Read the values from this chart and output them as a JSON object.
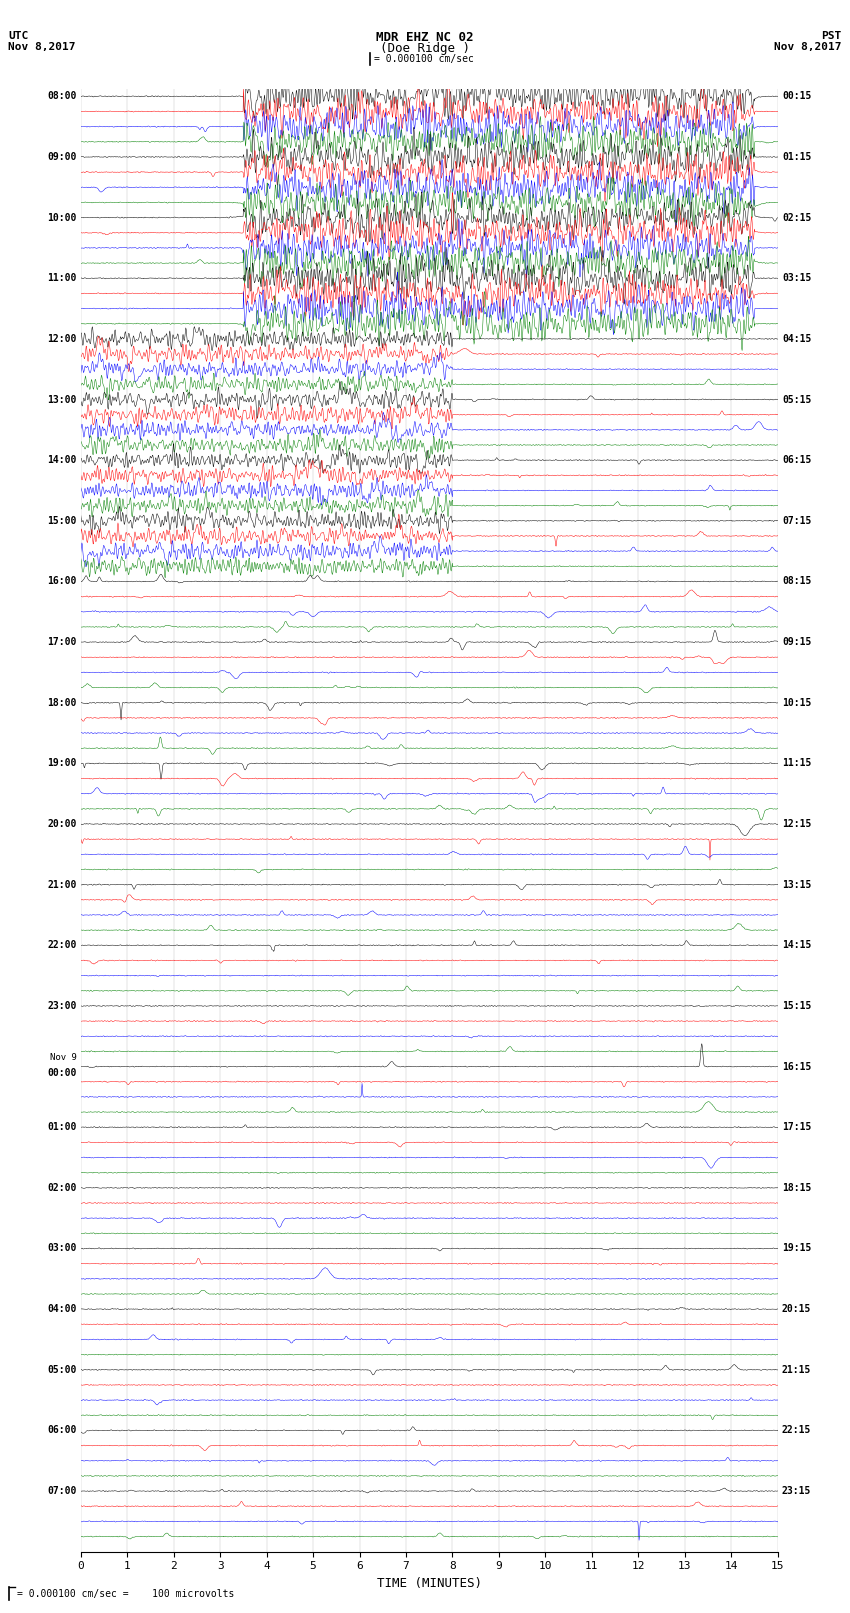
{
  "title_line1": "MDR EHZ NC 02",
  "title_line2": "(Doe Ridge )",
  "scale_label": "= 0.000100 cm/sec",
  "left_label_line1": "UTC",
  "left_label_line2": "Nov 8,2017",
  "right_label_line1": "PST",
  "right_label_line2": "Nov 8,2017",
  "footer_label": "= 0.000100 cm/sec =    100 microvolts",
  "xlabel": "TIME (MINUTES)",
  "colors": [
    "black",
    "red",
    "blue",
    "green"
  ],
  "num_hours": 24,
  "traces_per_hour": 4,
  "utc_times": [
    "08:00",
    "09:00",
    "10:00",
    "11:00",
    "12:00",
    "13:00",
    "14:00",
    "15:00",
    "16:00",
    "17:00",
    "18:00",
    "19:00",
    "20:00",
    "21:00",
    "22:00",
    "23:00",
    "Nov 9\n00:00",
    "01:00",
    "02:00",
    "03:00",
    "04:00",
    "05:00",
    "06:00",
    "07:00"
  ],
  "pst_times": [
    "00:15",
    "01:15",
    "02:15",
    "03:15",
    "04:15",
    "05:15",
    "06:15",
    "07:15",
    "08:15",
    "09:15",
    "10:15",
    "11:15",
    "12:15",
    "13:15",
    "14:15",
    "15:15",
    "16:15",
    "17:15",
    "18:15",
    "19:15",
    "20:15",
    "21:15",
    "22:15",
    "23:15"
  ],
  "xlim": [
    0,
    15
  ],
  "xticks": [
    0,
    1,
    2,
    3,
    4,
    5,
    6,
    7,
    8,
    9,
    10,
    11,
    12,
    13,
    14,
    15
  ],
  "bg_color": "white",
  "seed": 12345
}
